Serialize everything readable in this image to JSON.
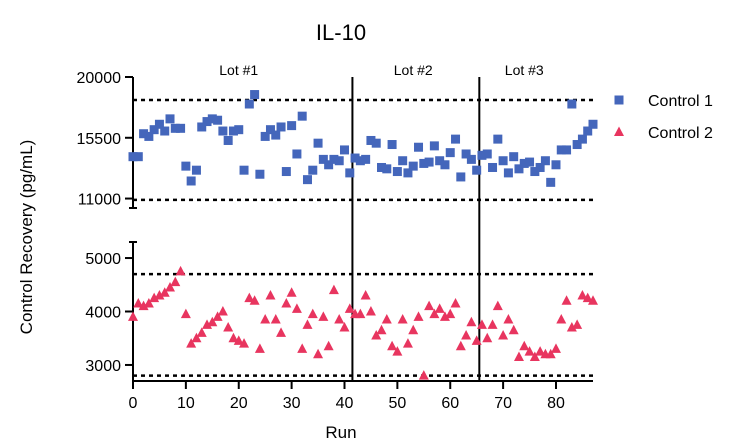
{
  "chart_data": {
    "type": "scatter",
    "title": "IL-10",
    "xlabel": "Run",
    "ylabel": "Control  Recovery (pg/mL)",
    "xlim": [
      0,
      87
    ],
    "x_ticks": [
      0,
      10,
      20,
      30,
      40,
      50,
      60,
      70,
      80
    ],
    "y_axis_break": true,
    "y_segments": [
      {
        "range": [
          10300,
          20000
        ],
        "ticks": [
          20000,
          15500,
          11000
        ]
      },
      {
        "range": [
          2700,
          5300
        ],
        "ticks": [
          5000,
          4000,
          3000
        ]
      }
    ],
    "reference_lines": [
      18300,
      10900,
      4700,
      2800
    ],
    "lot_boundaries": [
      41.5,
      65.5
    ],
    "lot_labels": [
      {
        "text": "Lot #1",
        "x": 20
      },
      {
        "text": "Lot #2",
        "x": 53
      },
      {
        "text": "Lot #3",
        "x": 74
      }
    ],
    "legend_position": "right",
    "series": [
      {
        "name": "Control 1",
        "marker": "square",
        "color": "#4466bb",
        "x": [
          0,
          1,
          2,
          3,
          4,
          5,
          6,
          7,
          8,
          9,
          10,
          11,
          12,
          13,
          14,
          15,
          16,
          17,
          18,
          19,
          20,
          21,
          22,
          23,
          24,
          25,
          26,
          27,
          28,
          29,
          30,
          31,
          32,
          33,
          34,
          35,
          36,
          37,
          38,
          39,
          40,
          41,
          42,
          43,
          44,
          45,
          46,
          47,
          48,
          49,
          50,
          51,
          52,
          53,
          54,
          55,
          56,
          57,
          58,
          59,
          60,
          61,
          62,
          63,
          64,
          65,
          66,
          67,
          68,
          69,
          70,
          71,
          72,
          73,
          74,
          75,
          76,
          77,
          78,
          79,
          80,
          81,
          82,
          83,
          84,
          85,
          86,
          87
        ],
        "y": [
          14100,
          14100,
          15800,
          15600,
          16100,
          16500,
          16000,
          16900,
          16200,
          16200,
          13400,
          12300,
          13100,
          16300,
          16700,
          16900,
          16800,
          16000,
          15300,
          16000,
          16100,
          13100,
          18000,
          18700,
          12800,
          15600,
          16100,
          15700,
          16300,
          13000,
          16400,
          14300,
          17100,
          12400,
          13100,
          15100,
          13900,
          13500,
          13900,
          13800,
          14600,
          12900,
          14000,
          13800,
          13900,
          15300,
          15100,
          13300,
          13200,
          15000,
          13000,
          13800,
          12900,
          13400,
          14800,
          13600,
          13700,
          14900,
          13800,
          13500,
          14400,
          15400,
          12600,
          14300,
          13900,
          13100,
          14200,
          14300,
          13300,
          15400,
          13800,
          12900,
          14100,
          13200,
          13600,
          13700,
          13000,
          13300,
          13800,
          12200,
          13500,
          14600,
          14600,
          18000,
          15000,
          15400,
          16000,
          16500
        ]
      },
      {
        "name": "Control 2",
        "marker": "triangle",
        "color": "#e8355f",
        "x": [
          0,
          1,
          2,
          3,
          4,
          5,
          6,
          7,
          8,
          9,
          10,
          11,
          12,
          13,
          14,
          15,
          16,
          17,
          18,
          19,
          20,
          21,
          22,
          23,
          24,
          25,
          26,
          27,
          28,
          29,
          30,
          31,
          32,
          33,
          34,
          35,
          36,
          37,
          38,
          39,
          40,
          41,
          42,
          43,
          44,
          45,
          46,
          47,
          48,
          49,
          50,
          51,
          52,
          53,
          54,
          55,
          56,
          57,
          58,
          59,
          60,
          61,
          62,
          63,
          64,
          65,
          66,
          67,
          68,
          69,
          70,
          71,
          72,
          73,
          74,
          75,
          76,
          77,
          78,
          79,
          80,
          81,
          82,
          83,
          84,
          85,
          86,
          87
        ],
        "y": [
          3900,
          4150,
          4100,
          4150,
          4250,
          4300,
          4350,
          4450,
          4550,
          4750,
          3950,
          3400,
          3500,
          3600,
          3750,
          3800,
          3900,
          4000,
          3700,
          3500,
          3450,
          3400,
          4250,
          4200,
          3300,
          3850,
          4300,
          3850,
          3600,
          4150,
          4350,
          4050,
          3300,
          3750,
          3950,
          3200,
          3900,
          3350,
          4400,
          3850,
          3700,
          4050,
          3950,
          3950,
          4300,
          4000,
          3550,
          3650,
          3850,
          3350,
          3250,
          3850,
          3400,
          3650,
          3900,
          2800,
          4100,
          3950,
          4050,
          3900,
          3950,
          4150,
          3350,
          3550,
          3800,
          3450,
          3750,
          3500,
          3750,
          4100,
          3550,
          3850,
          3650,
          3150,
          3350,
          3250,
          3150,
          3250,
          3200,
          3200,
          3300,
          3850,
          4200,
          3700,
          3750,
          4300,
          4250,
          4200
        ]
      }
    ]
  }
}
